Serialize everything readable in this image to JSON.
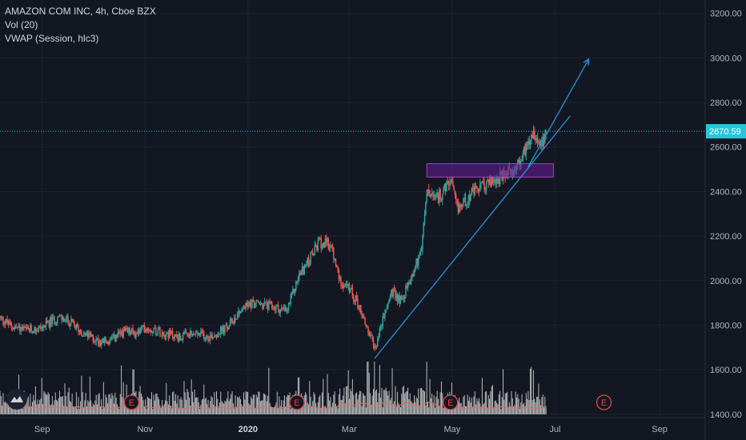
{
  "legend": {
    "title": "AMAZON COM INC, 4h, Cboe BZX",
    "vol": "Vol (20)",
    "vwap": "VWAP (Session, hlc3)"
  },
  "colors": {
    "background": "#131722",
    "grid": "#1f2433",
    "up": "#26a69a",
    "down": "#ef5350",
    "trendline": "#2a93d5",
    "box_fill": "#6a1b9a",
    "box_border": "#b040c0",
    "price_line": "#26c6da",
    "vwap": "#e0705a",
    "volume": "#d8d8d8",
    "earnings": "#e04848"
  },
  "chart_data": {
    "type": "candlestick",
    "title": "AMAZON COM INC, 4h, Cboe BZX",
    "y_ticks": [
      1400,
      1600,
      1800,
      2000,
      2200,
      2400,
      2600,
      2800,
      3000,
      3200
    ],
    "y_tick_labels": [
      "1400.00",
      "1600.00",
      "1800.00",
      "2000.00",
      "2200.00",
      "2400.00",
      "2600.00",
      "2800.00",
      "3000.00",
      "3200.00"
    ],
    "ylim": [
      1385,
      3260
    ],
    "x_ticks": [
      {
        "label": "Sep",
        "date": "2019-09-01"
      },
      {
        "label": "Nov",
        "date": "2019-11-01"
      },
      {
        "label": "2020",
        "date": "2020-01-01",
        "bold": true
      },
      {
        "label": "Mar",
        "date": "2020-03-01"
      },
      {
        "label": "May",
        "date": "2020-05-01"
      },
      {
        "label": "Jul",
        "date": "2020-07-01"
      },
      {
        "label": "Sep",
        "date": "2020-09-01"
      }
    ],
    "xlim": [
      "2019-08-07",
      "2020-09-28"
    ],
    "last_price": 2670.59,
    "last_price_label": "2670.59",
    "price_path": [
      [
        "2019-08-07",
        1832
      ],
      [
        "2019-08-14",
        1795
      ],
      [
        "2019-08-23",
        1775
      ],
      [
        "2019-09-01",
        1790
      ],
      [
        "2019-09-10",
        1835
      ],
      [
        "2019-09-17",
        1815
      ],
      [
        "2019-09-26",
        1760
      ],
      [
        "2019-10-04",
        1730
      ],
      [
        "2019-10-11",
        1725
      ],
      [
        "2019-10-18",
        1765
      ],
      [
        "2019-10-24",
        1770
      ],
      [
        "2019-10-26",
        1760
      ],
      [
        "2019-11-01",
        1790
      ],
      [
        "2019-11-12",
        1770
      ],
      [
        "2019-11-21",
        1745
      ],
      [
        "2019-12-01",
        1760
      ],
      [
        "2019-12-10",
        1750
      ],
      [
        "2019-12-20",
        1790
      ],
      [
        "2019-12-27",
        1865
      ],
      [
        "2020-01-03",
        1900
      ],
      [
        "2020-01-10",
        1890
      ],
      [
        "2020-01-17",
        1880
      ],
      [
        "2020-01-24",
        1860
      ],
      [
        "2020-01-31",
        2020
      ],
      [
        "2020-02-07",
        2100
      ],
      [
        "2020-02-12",
        2170
      ],
      [
        "2020-02-19",
        2160
      ],
      [
        "2020-02-24",
        2010
      ],
      [
        "2020-03-02",
        1950
      ],
      [
        "2020-03-06",
        1900
      ],
      [
        "2020-03-12",
        1780
      ],
      [
        "2020-03-16",
        1690
      ],
      [
        "2020-03-20",
        1800
      ],
      [
        "2020-03-26",
        1950
      ],
      [
        "2020-04-01",
        1910
      ],
      [
        "2020-04-07",
        2020
      ],
      [
        "2020-04-13",
        2150
      ],
      [
        "2020-04-16",
        2400
      ],
      [
        "2020-04-21",
        2360
      ],
      [
        "2020-04-27",
        2410
      ],
      [
        "2020-04-30",
        2450
      ],
      [
        "2020-05-04",
        2320
      ],
      [
        "2020-05-11",
        2380
      ],
      [
        "2020-05-18",
        2420
      ],
      [
        "2020-05-26",
        2450
      ],
      [
        "2020-06-01",
        2470
      ],
      [
        "2020-06-08",
        2510
      ],
      [
        "2020-06-11",
        2540
      ],
      [
        "2020-06-15",
        2630
      ],
      [
        "2020-06-18",
        2670
      ],
      [
        "2020-06-22",
        2620
      ],
      [
        "2020-06-26",
        2670.59
      ]
    ],
    "volume_spikes": [
      {
        "date": "2019-10-25",
        "fraction": 0.85
      },
      {
        "date": "2020-01-31",
        "fraction": 0.7
      },
      {
        "date": "2020-03-12",
        "fraction": 0.9
      },
      {
        "date": "2020-03-16",
        "fraction": 1.0
      },
      {
        "date": "2020-03-19",
        "fraction": 0.75
      },
      {
        "date": "2020-04-16",
        "fraction": 0.95
      },
      {
        "date": "2020-05-01",
        "fraction": 0.6
      }
    ],
    "vwap_level": 1430,
    "earnings_markers": [
      {
        "label": "E",
        "date": "2019-10-24"
      },
      {
        "label": "E",
        "date": "2020-01-30"
      },
      {
        "label": "E",
        "date": "2020-04-30"
      },
      {
        "label": "E",
        "date": "2020-07-30"
      }
    ],
    "annotations": {
      "consolidation_box": {
        "x1": "2020-04-16",
        "x2": "2020-06-30",
        "y_low": 2465,
        "y_high": 2525
      },
      "trendlines": [
        {
          "x1": "2020-03-16",
          "y1": 1650,
          "x2": "2020-07-10",
          "y2": 2740
        },
        {
          "x1": "2020-06-15",
          "y1": 2510,
          "x2": "2020-07-21",
          "y2": 2995,
          "arrow": true
        }
      ]
    }
  }
}
